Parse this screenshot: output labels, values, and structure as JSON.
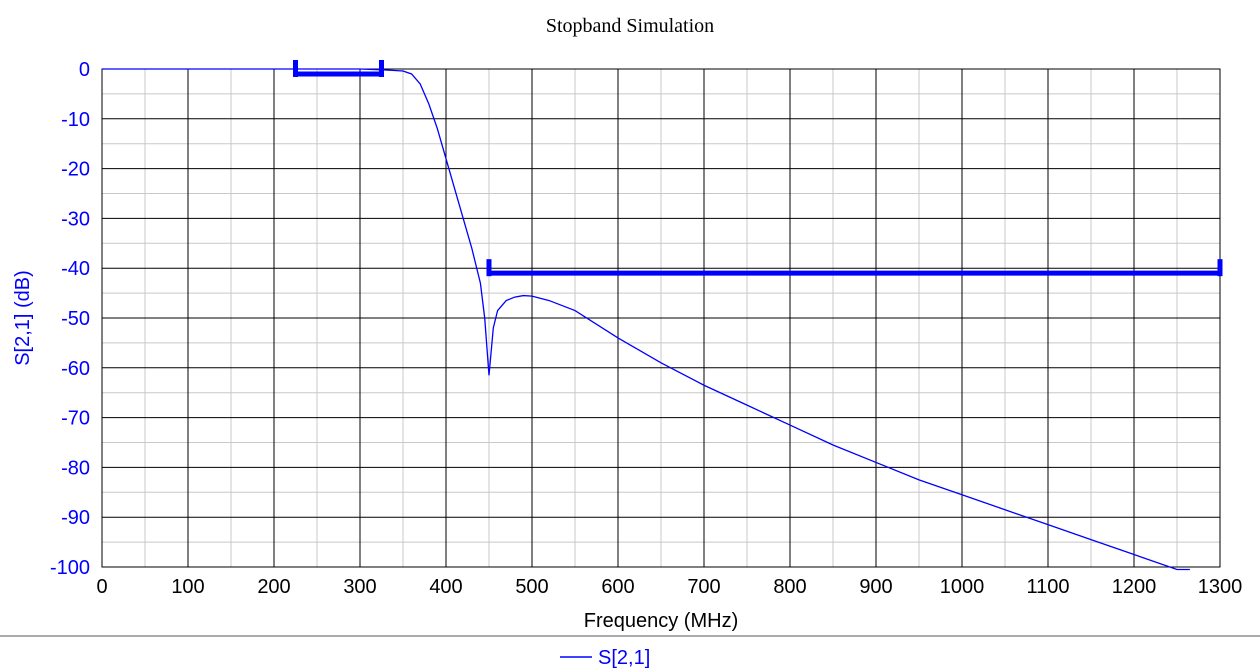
{
  "chart_data": {
    "type": "line",
    "title": "Stopband Simulation",
    "xlabel": "Frequency (MHz)",
    "ylabel": "S[2,1] (dB)",
    "xlim": [
      0,
      1300
    ],
    "ylim": [
      -100,
      0
    ],
    "x_ticks": [
      "0",
      "100",
      "200",
      "300",
      "400",
      "500",
      "600",
      "700",
      "800",
      "900",
      "1000",
      "1100",
      "1200",
      "1300"
    ],
    "y_ticks": [
      "0",
      "-10",
      "-20",
      "-30",
      "-40",
      "-50",
      "-60",
      "-70",
      "-80",
      "-90",
      "-100"
    ],
    "grid": true,
    "legend_position": "bottom-center",
    "colors": {
      "series": "#0000ff",
      "ylabel": "#0000ff",
      "y_ticks": "#0000ff",
      "x_ticks": "#000000",
      "mask": "#0000ff"
    },
    "series": [
      {
        "name": "S[2,1]",
        "x": [
          0,
          100,
          200,
          300,
          330,
          350,
          360,
          370,
          380,
          390,
          400,
          410,
          420,
          430,
          440,
          445,
          450,
          455,
          460,
          470,
          480,
          490,
          500,
          520,
          550,
          600,
          650,
          700,
          750,
          800,
          850,
          900,
          950,
          1000,
          1050,
          1100,
          1150,
          1200,
          1250,
          1265
        ],
        "y": [
          0,
          0,
          0,
          0,
          -0.2,
          -0.4,
          -1,
          -3,
          -7,
          -12,
          -18,
          -24,
          -30,
          -36,
          -43,
          -50,
          -61.5,
          -52,
          -48.5,
          -46.5,
          -45.8,
          -45.5,
          -45.6,
          -46.5,
          -48.5,
          -54,
          -59,
          -63.5,
          -67.5,
          -71.5,
          -75.5,
          -79,
          -82.5,
          -85.5,
          -88.5,
          -91.5,
          -94.5,
          -97.5,
          -100.5,
          -101
        ]
      }
    ],
    "masks": [
      {
        "x": [
          225,
          325
        ],
        "y": -1
      },
      {
        "x": [
          450,
          1300
        ],
        "y": -41
      }
    ]
  },
  "legend": {
    "label": "S[2,1]"
  }
}
